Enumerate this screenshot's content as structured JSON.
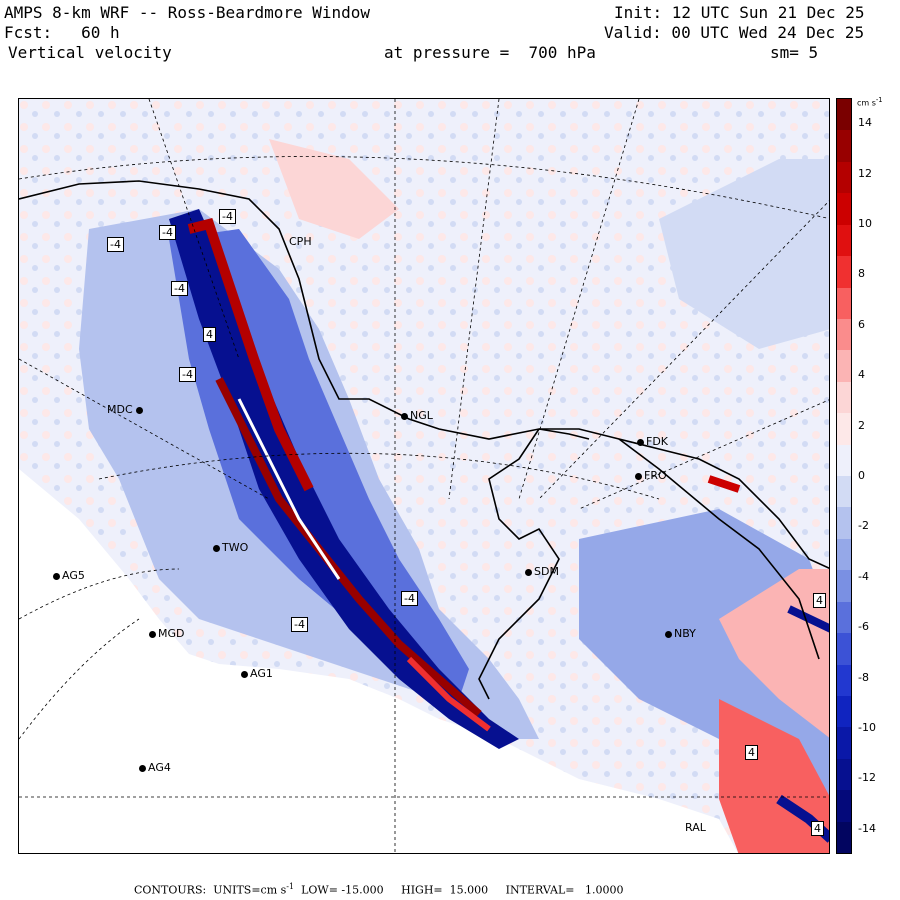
{
  "header": {
    "title": "AMPS 8-km WRF -- Ross-Beardmore Window",
    "forecast": "Fcst:   60 h",
    "variable": "Vertical velocity",
    "init": "Init: 12 UTC Sun 21 Dec 25",
    "valid": "Valid: 00 UTC Wed 24 Dec 25",
    "pressure": "at pressure =  700 hPa",
    "smoothing": "sm= 5"
  },
  "stations": [
    {
      "id": "CPH",
      "label": "CPH"
    },
    {
      "id": "MDC",
      "label": "MDC"
    },
    {
      "id": "NGL",
      "label": "NGL"
    },
    {
      "id": "FDK",
      "label": "FDK"
    },
    {
      "id": "FRO",
      "label": "FRO"
    },
    {
      "id": "TWO",
      "label": "TWO"
    },
    {
      "id": "AG5",
      "label": "AG5"
    },
    {
      "id": "SDM",
      "label": "SDM"
    },
    {
      "id": "MGD",
      "label": "MGD"
    },
    {
      "id": "NBY",
      "label": "NBY"
    },
    {
      "id": "AG1",
      "label": "AG1"
    },
    {
      "id": "AG4",
      "label": "AG4"
    },
    {
      "id": "RAL",
      "label": "RAL"
    }
  ],
  "contour_labels": [
    "-4",
    "-4",
    "-4",
    "-4",
    "-4",
    "-4",
    "-4",
    "4",
    "4",
    "4",
    "4"
  ],
  "colorbar": {
    "unit": "cm s",
    "unit_exp": "-1",
    "ticks": [
      "14",
      "12",
      "10",
      "8",
      "6",
      "4",
      "2",
      "0",
      "-2",
      "-4",
      "-6",
      "-8",
      "-10",
      "-12",
      "-14"
    ],
    "colors": [
      "#7a0000",
      "#980000",
      "#b40000",
      "#cc0000",
      "#e01010",
      "#f03030",
      "#f86060",
      "#fa8c8c",
      "#fbb4b4",
      "#fcd6d6",
      "#fde8e8",
      "#eef0fb",
      "#d2dbf4",
      "#b4c2ee",
      "#95a8e8",
      "#7a90e3",
      "#5a70dc",
      "#3c52d6",
      "#2238d0",
      "#1024c0",
      "#0a18a8",
      "#061090",
      "#04097a",
      "#020560"
    ],
    "min": -15,
    "max": 15
  },
  "footer": {
    "contours": "CONTOURS:  UNITS=cm s",
    "unit_exp": "-1",
    "low": "LOW= -15.000",
    "high": "HIGH=  15.000",
    "interval": "INTERVAL=   1.0000"
  },
  "colors": {
    "land_bg": "#ffffff",
    "neutral": "#f5f0f4",
    "positive": "#c00000",
    "negative": "#1828c8"
  }
}
